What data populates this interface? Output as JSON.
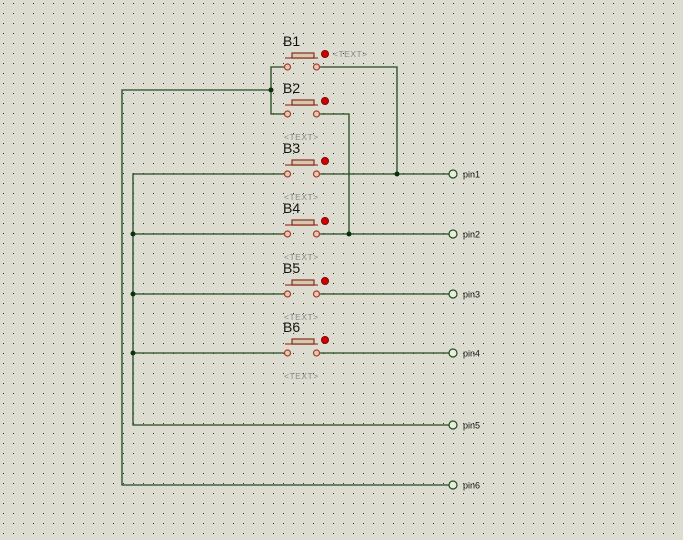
{
  "colors": {
    "background": "#dcdcd0",
    "grid_dot": "#2a2a2a",
    "wire": "#1f4a1f",
    "component": "#a53c2c",
    "actuator": "#cc0000"
  },
  "buttons": [
    {
      "ref": "B1",
      "text": "<TEXT>"
    },
    {
      "ref": "B2",
      "text": "<TEXT>"
    },
    {
      "ref": "B3",
      "text": "<TEXT>"
    },
    {
      "ref": "B4",
      "text": "<TEXT>"
    },
    {
      "ref": "B5",
      "text": "<TEXT>"
    },
    {
      "ref": "B6",
      "text": "<TEXT>"
    }
  ],
  "terminals": [
    "pin1",
    "pin2",
    "pin3",
    "pin4",
    "pin5",
    "pin6"
  ]
}
